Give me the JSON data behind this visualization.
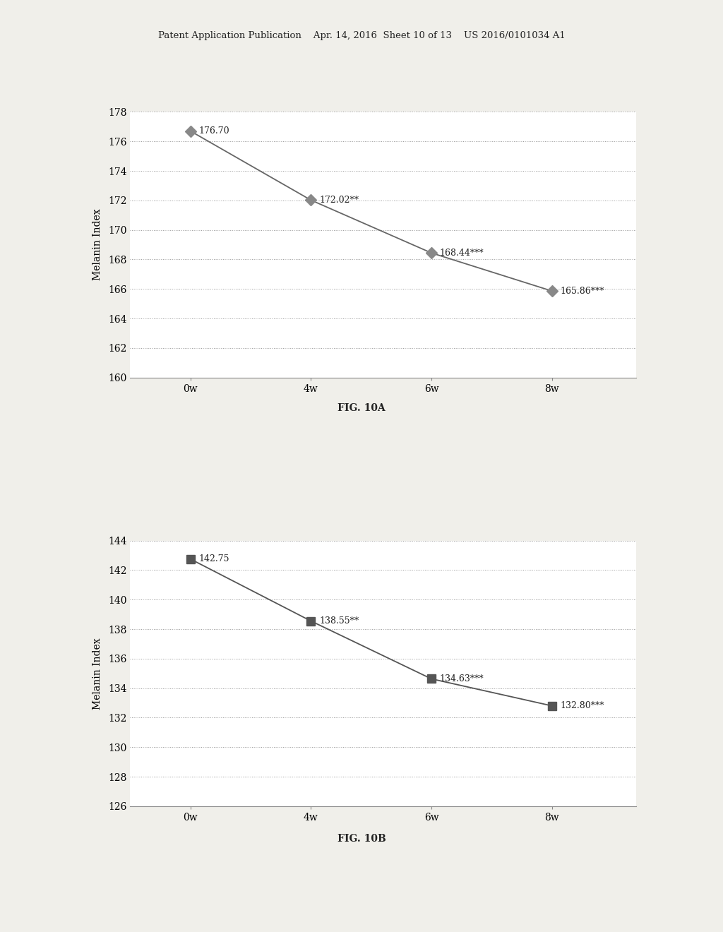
{
  "header_text": "Patent Application Publication    Apr. 14, 2016  Sheet 10 of 13    US 2016/0101034 A1",
  "chart_a": {
    "x_labels": [
      "0w",
      "4w",
      "6w",
      "8w"
    ],
    "x_values": [
      0,
      1,
      2,
      3
    ],
    "y_values": [
      176.7,
      172.02,
      168.44,
      165.86
    ],
    "y_labels": [
      "176.70",
      "172.02**",
      "168.44***",
      "165.86***"
    ],
    "ylabel": "Melanin Index",
    "ylim": [
      160,
      178
    ],
    "yticks": [
      160,
      162,
      164,
      166,
      168,
      170,
      172,
      174,
      176,
      178
    ],
    "fig_label": "FIG. 10A",
    "marker_color": "#888888",
    "line_color": "#666666"
  },
  "chart_b": {
    "x_labels": [
      "0w",
      "4w",
      "6w",
      "8w"
    ],
    "x_values": [
      0,
      1,
      2,
      3
    ],
    "y_values": [
      142.75,
      138.55,
      134.63,
      132.8
    ],
    "y_labels": [
      "142.75",
      "138.55**",
      "134.63***",
      "132.80***"
    ],
    "ylabel": "Melanin Index",
    "ylim": [
      126,
      144
    ],
    "yticks": [
      126,
      128,
      130,
      132,
      134,
      136,
      138,
      140,
      142,
      144
    ],
    "fig_label": "FIG. 10B",
    "marker_color": "#555555",
    "line_color": "#555555"
  },
  "background_color": "#f0efea",
  "plot_bg_color": "#ffffff",
  "grid_color": "#999999",
  "text_color": "#222222",
  "font_family": "DejaVu Serif"
}
